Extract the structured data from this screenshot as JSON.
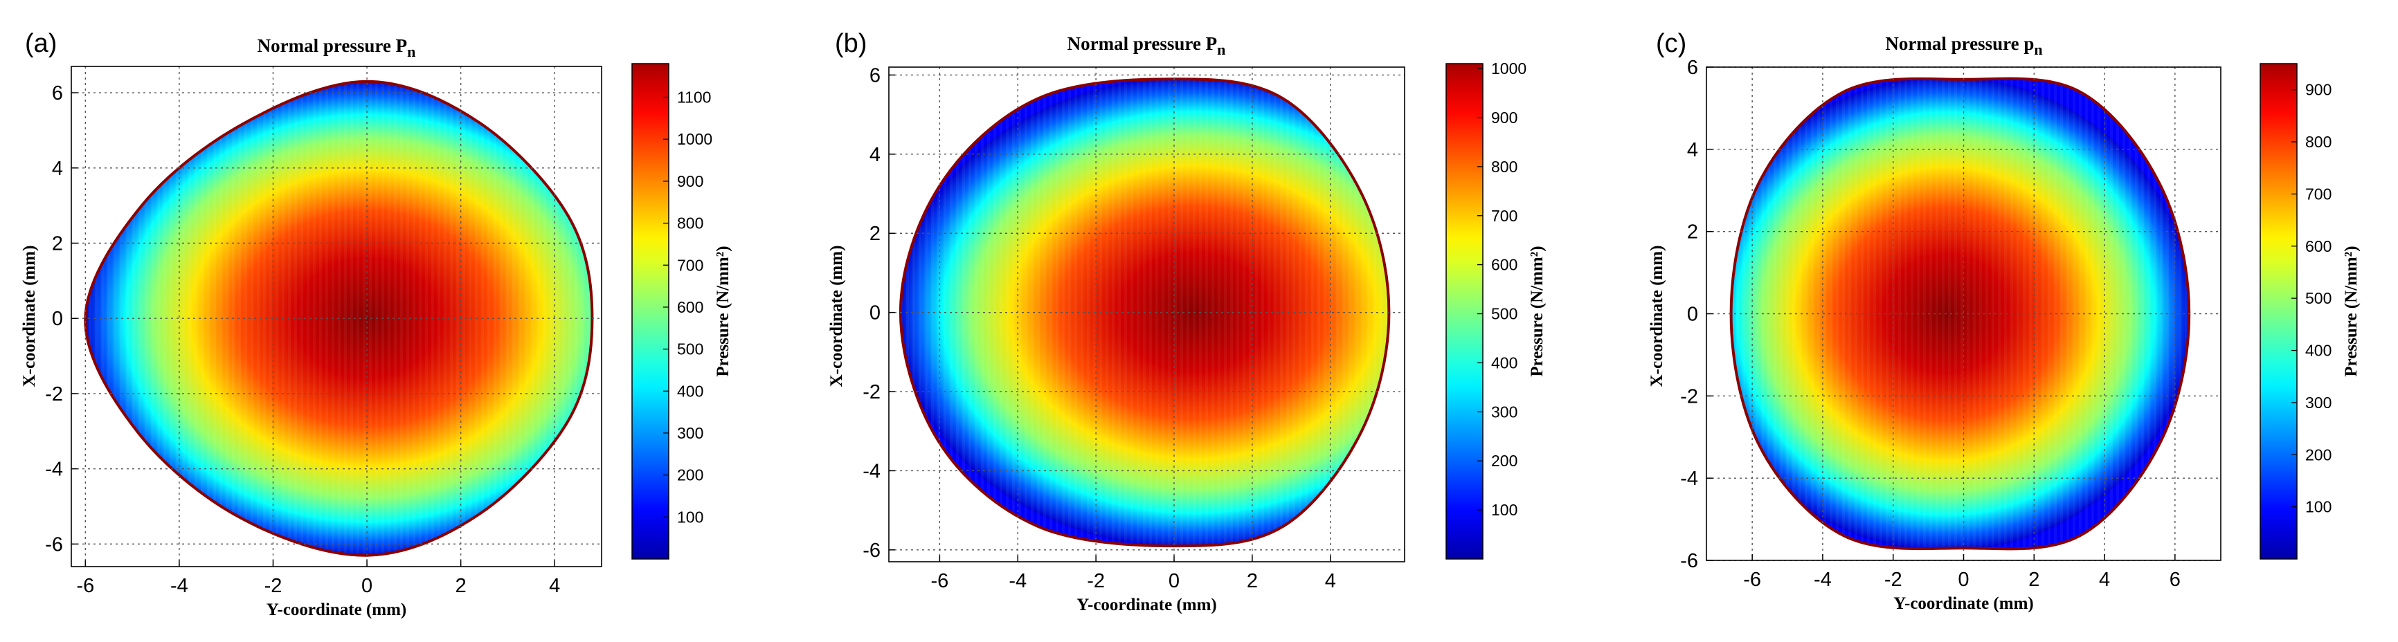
{
  "figure": {
    "colors": {
      "boundary": "#8b0000",
      "grid": "#555555",
      "frame": "#000000"
    },
    "colormap": "jet",
    "panels": [
      {
        "label": "(a)",
        "title_main": "Normal pressure P",
        "title_sub": "n",
        "xlabel": "Y-coordinate (mm)",
        "ylabel": "X-coordinate (mm)",
        "colorbar_label": "Pressure (N/mm²)",
        "chart_data": {
          "type": "heatmap",
          "xlim": [
            -6.3,
            5.0
          ],
          "ylim": [
            -6.6,
            6.7
          ],
          "xticks": [
            -6,
            -4,
            -2,
            0,
            2,
            4
          ],
          "yticks": [
            -6,
            -4,
            -2,
            0,
            2,
            4,
            6
          ],
          "clim": [
            0,
            1180
          ],
          "cticks": [
            100,
            200,
            300,
            400,
            500,
            600,
            700,
            800,
            900,
            1000,
            1100
          ],
          "peak_pressure": 1160,
          "peak_center": [
            0.0,
            0.0
          ],
          "contact_boundary": {
            "angles_deg": [
              0,
              30,
              60,
              90,
              120,
              150,
              180,
              210,
              240,
              270,
              300,
              330
            ],
            "x": [
              4.8,
              4.3,
              2.4,
              0.0,
              -2.6,
              -4.8,
              -6.0,
              -4.9,
              -2.7,
              0.0,
              2.4,
              4.3
            ],
            "y": [
              0.0,
              2.7,
              5.2,
              6.3,
              5.2,
              3.0,
              0.0,
              -3.0,
              -5.3,
              -6.3,
              -5.2,
              -2.7
            ]
          }
        }
      },
      {
        "label": "(b)",
        "title_main": "Normal pressure P",
        "title_sub": "n",
        "xlabel": "Y-coordinate (mm)",
        "ylabel": "X-coordinate (mm)",
        "colorbar_label": "Pressure (N/mm²)",
        "chart_data": {
          "type": "heatmap",
          "xlim": [
            -7.3,
            5.9
          ],
          "ylim": [
            -6.3,
            6.2
          ],
          "xticks": [
            -6,
            -4,
            -2,
            0,
            2,
            4
          ],
          "yticks": [
            -6,
            -4,
            -2,
            0,
            2,
            4,
            6
          ],
          "clim": [
            0,
            1010
          ],
          "cticks": [
            100,
            200,
            300,
            400,
            500,
            600,
            700,
            800,
            900,
            1000
          ],
          "peak_pressure": 1000,
          "peak_center": [
            0.5,
            0.0
          ],
          "contact_boundary": {
            "angles_deg": [
              0,
              30,
              60,
              90,
              120,
              150,
              180,
              210,
              240,
              270,
              300,
              330
            ],
            "x": [
              5.5,
              4.8,
              2.8,
              0.0,
              -3.5,
              -6.0,
              -7.0,
              -6.0,
              -3.5,
              0.0,
              2.8,
              4.8
            ],
            "y": [
              0.0,
              3.0,
              5.4,
              5.9,
              5.4,
              3.2,
              0.0,
              -3.3,
              -5.4,
              -5.9,
              -5.4,
              -3.0
            ]
          }
        }
      },
      {
        "label": "(c)",
        "title_main": "Normal pressure p",
        "title_sub": "n",
        "xlabel": "Y-coordinate (mm)",
        "ylabel": "X-coordinate (mm)",
        "colorbar_label": "Pressure (N/mm²)",
        "chart_data": {
          "type": "heatmap",
          "xlim": [
            -7.3,
            7.3
          ],
          "ylim": [
            -6.0,
            6.0
          ],
          "xticks": [
            -6,
            -4,
            -2,
            0,
            2,
            4,
            6
          ],
          "yticks": [
            -6,
            -4,
            -2,
            0,
            2,
            4,
            6
          ],
          "clim": [
            0,
            950
          ],
          "cticks": [
            100,
            200,
            300,
            400,
            500,
            600,
            700,
            800,
            900
          ],
          "peak_pressure": 930,
          "peak_center": [
            -0.5,
            0.0
          ],
          "contact_boundary": {
            "angles_deg": [
              0,
              30,
              60,
              90,
              120,
              150,
              180,
              210,
              240,
              270,
              300,
              330
            ],
            "x": [
              6.4,
              5.6,
              3.3,
              0.0,
              -3.4,
              -5.8,
              -6.6,
              -5.8,
              -3.4,
              0.0,
              3.3,
              5.6
            ],
            "y": [
              0.0,
              3.1,
              5.4,
              5.7,
              5.4,
              3.2,
              0.0,
              -3.2,
              -5.4,
              -5.7,
              -5.4,
              -3.1
            ]
          }
        }
      }
    ]
  }
}
